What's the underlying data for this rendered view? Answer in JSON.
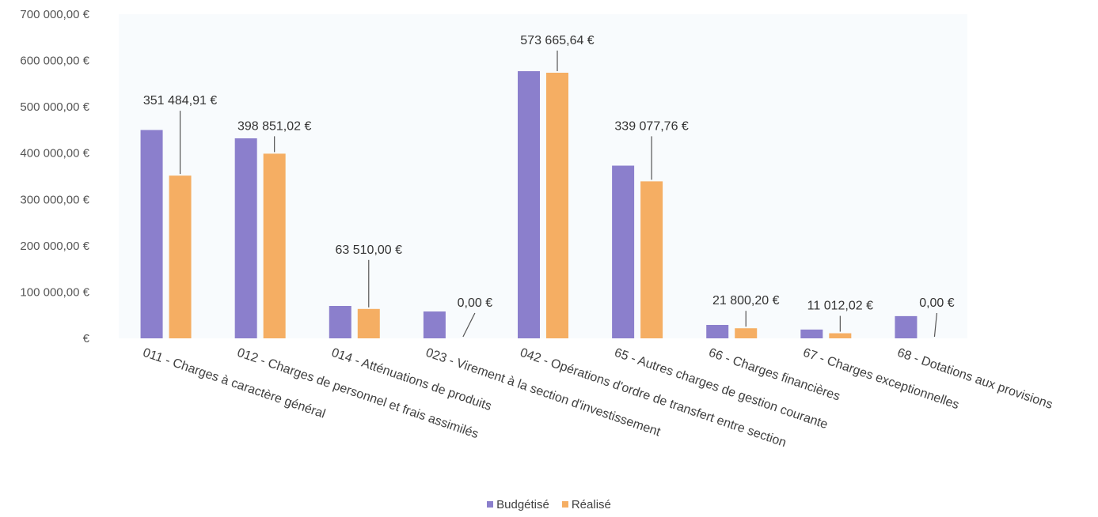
{
  "chart_data": {
    "type": "bar",
    "categories": [
      "011 - Charges à caractère général",
      "012 - Charges de personnel et frais assimilés",
      "014 - Atténuations de produits",
      "023 - Virement à la section d'investissement",
      "042 - Opérations d'ordre de transfert entre section",
      "65 - Autres charges de gestion courante",
      "66 - Charges financières",
      "67 - Charges exceptionnelles",
      "68 - Dotations aux provisions"
    ],
    "series": [
      {
        "name": "Budgétisé",
        "color": "#8b7fcc",
        "values": [
          450000,
          432000,
          70000,
          58000,
          577000,
          373000,
          29000,
          19000,
          48000
        ]
      },
      {
        "name": "Réalisé",
        "color": "#f5ae63",
        "values": [
          351484.91,
          398851.02,
          63510.0,
          0.0,
          573665.64,
          339077.76,
          21800.2,
          11012.02,
          0.0
        ]
      }
    ],
    "data_labels": [
      "351 484,91 €",
      "398 851,02 €",
      "63 510,00 €",
      "0,00 €",
      "573 665,64 €",
      "339 077,76 €",
      "21 800,20 €",
      "11 012,02 €",
      "0,00 €"
    ],
    "y_ticks": [
      0,
      100000,
      200000,
      300000,
      400000,
      500000,
      600000,
      700000
    ],
    "y_tick_labels": [
      "€",
      "100 000,00 €",
      "200 000,00 €",
      "300 000,00 €",
      "400 000,00 €",
      "500 000,00 €",
      "600 000,00 €",
      "700 000,00 €"
    ],
    "ylim": [
      0,
      700000
    ],
    "grid": false,
    "legend_position": "bottom"
  }
}
